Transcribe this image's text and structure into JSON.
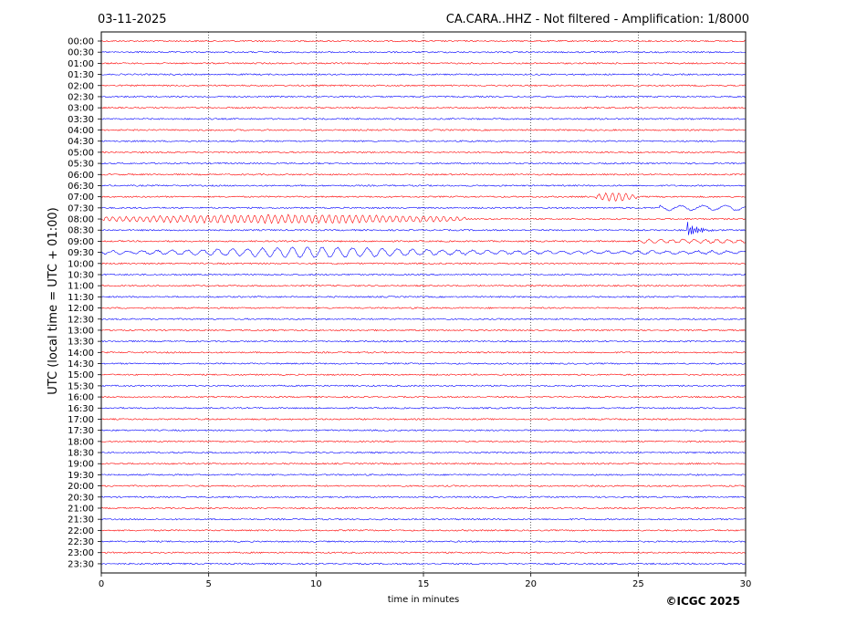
{
  "header": {
    "date": "03-11-2025",
    "station_title": "CA.CARA..HHZ - Not filtered - Amplification: 1/8000"
  },
  "footer": {
    "copyright": "©ICGC 2025"
  },
  "chart_data": {
    "type": "line",
    "title": "CA.CARA..HHZ - Not filtered - Amplification: 1/8000",
    "xlabel": "time in minutes",
    "ylabel": "UTC (local time = UTC + 01:00)",
    "xlim": [
      0,
      30
    ],
    "x_ticks": [
      "0",
      "5",
      "10",
      "15",
      "20",
      "25",
      "30"
    ],
    "x_tick_values": [
      0,
      5,
      10,
      15,
      20,
      25,
      30
    ],
    "grid": "vertical dotted at x ticks",
    "colors": {
      "even_trace": "#ff0000",
      "odd_trace": "#0000ff",
      "grid": "#000000"
    },
    "row_labels": [
      "00:00",
      "00:30",
      "01:00",
      "01:30",
      "02:00",
      "02:30",
      "03:00",
      "03:30",
      "04:00",
      "04:30",
      "05:00",
      "05:30",
      "06:00",
      "06:30",
      "07:00",
      "07:30",
      "08:00",
      "08:30",
      "09:00",
      "09:30",
      "10:00",
      "10:30",
      "11:00",
      "11:30",
      "12:00",
      "12:30",
      "13:00",
      "13:30",
      "14:00",
      "14:30",
      "15:00",
      "15:30",
      "16:00",
      "16:30",
      "17:00",
      "17:30",
      "18:00",
      "18:30",
      "19:00",
      "19:30",
      "20:00",
      "20:30",
      "21:00",
      "21:30",
      "22:00",
      "22:30",
      "23:00",
      "23:30"
    ],
    "events": [
      {
        "row": "07:00",
        "start_min": 23.0,
        "end_min": 25.0,
        "amplitude": "medium"
      },
      {
        "row": "07:30",
        "start_min": 26.0,
        "end_min": 30.0,
        "amplitude": "low-long-period"
      },
      {
        "row": "08:00",
        "start_min": 0.0,
        "end_min": 17.0,
        "amplitude": "medium"
      },
      {
        "row": "08:30",
        "start_min": 27.3,
        "end_min": 29.0,
        "amplitude": "high"
      },
      {
        "row": "09:00",
        "start_min": 25.0,
        "end_min": 30.0,
        "amplitude": "low"
      },
      {
        "row": "09:30",
        "start_min": 0.0,
        "end_min": 30.0,
        "amplitude": "high-long-period"
      }
    ]
  }
}
